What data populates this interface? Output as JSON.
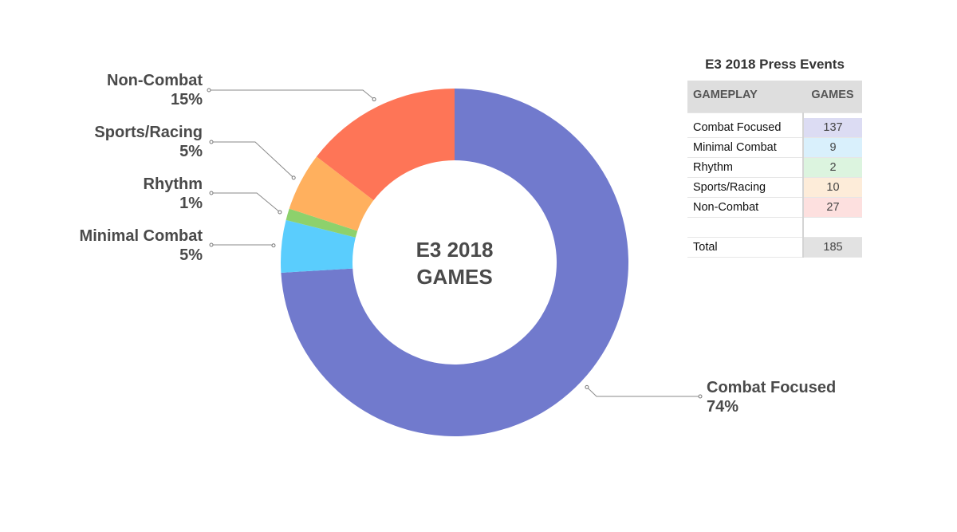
{
  "chart_data": {
    "type": "pie",
    "title": "E3 2018 GAMES",
    "center_label_lines": [
      "E3 2018",
      "GAMES"
    ],
    "slices": [
      {
        "name": "Combat Focused",
        "value": 137,
        "label_percent": "74%",
        "color": "#717acd"
      },
      {
        "name": "Minimal Combat",
        "value": 9,
        "label_percent": "5%",
        "color": "#5acdfd"
      },
      {
        "name": "Rhythm",
        "value": 2,
        "label_percent": "1%",
        "color": "#8dd16c"
      },
      {
        "name": "Sports/Racing",
        "value": 10,
        "label_percent": "5%",
        "color": "#ffb05e"
      },
      {
        "name": "Non-Combat",
        "value": 27,
        "label_percent": "15%",
        "color": "#fe7557"
      }
    ]
  },
  "table": {
    "title": "E3 2018 Press Events",
    "headers": [
      "GAMEPLAY",
      "GAMES"
    ],
    "rows": [
      {
        "label": "Combat Focused",
        "value": "137",
        "color": "#dcdcf3"
      },
      {
        "label": "Minimal Combat",
        "value": "9",
        "color": "#d9f0fc"
      },
      {
        "label": "Rhythm",
        "value": "2",
        "color": "#dcf4df"
      },
      {
        "label": "Sports/Racing",
        "value": "10",
        "color": "#fdecd9"
      },
      {
        "label": "Non-Combat",
        "value": "27",
        "color": "#fde0df"
      }
    ],
    "total_label": "Total",
    "total_value": "185"
  }
}
